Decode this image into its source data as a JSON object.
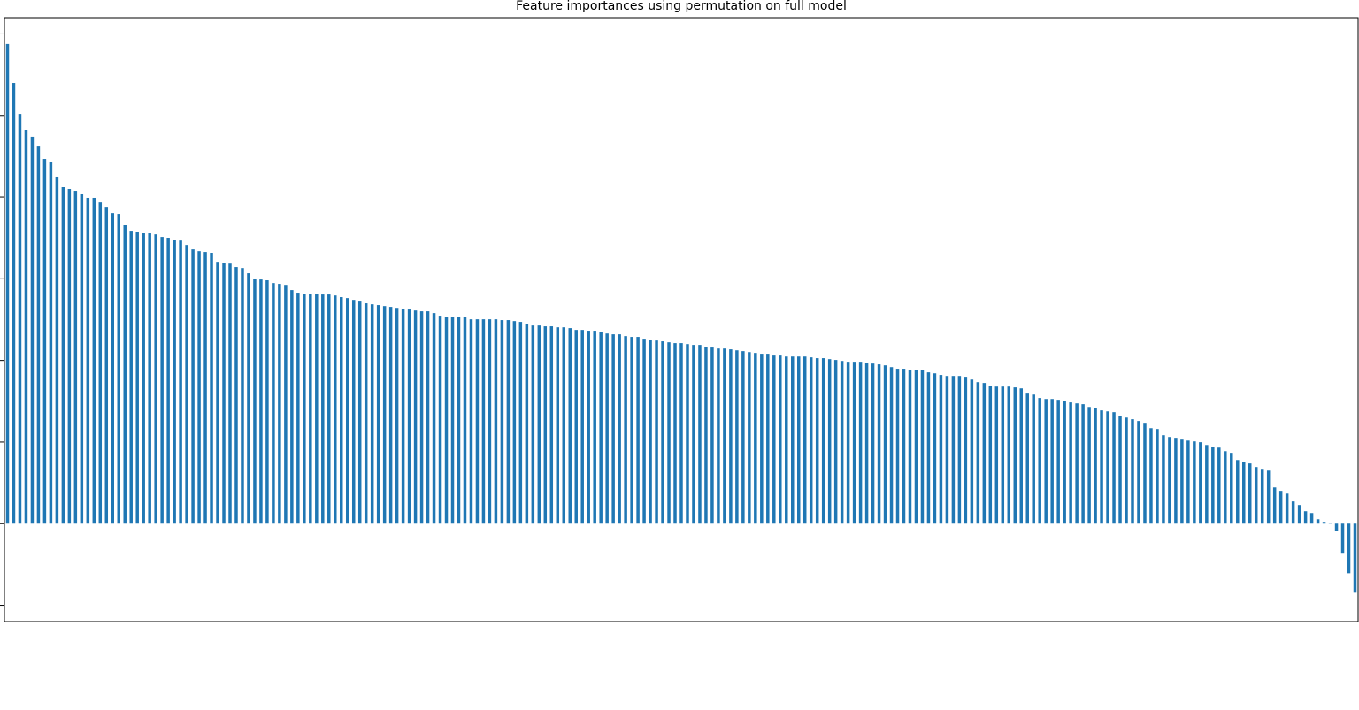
{
  "chart_data": {
    "type": "bar",
    "title": "Feature importances using permutation on full model",
    "color": "#1f77b4",
    "grid": false,
    "ylim": [
      -6.0,
      31.0
    ],
    "yticks": [
      -5,
      0,
      5,
      10,
      15,
      20,
      25,
      30
    ],
    "values": [
      29.38,
      26.99,
      25.09,
      24.12,
      23.69,
      23.14,
      22.33,
      22.17,
      21.25,
      20.65,
      20.49,
      20.38,
      20.22,
      19.95,
      19.95,
      19.67,
      19.4,
      19.02,
      18.97,
      18.27,
      17.94,
      17.89,
      17.83,
      17.78,
      17.72,
      17.56,
      17.51,
      17.4,
      17.34,
      17.07,
      16.8,
      16.69,
      16.64,
      16.59,
      16.04,
      15.99,
      15.93,
      15.72,
      15.66,
      15.34,
      15.01,
      14.96,
      14.91,
      14.74,
      14.69,
      14.63,
      14.31,
      14.15,
      14.09,
      14.09,
      14.09,
      14.04,
      14.04,
      13.98,
      13.88,
      13.82,
      13.71,
      13.66,
      13.5,
      13.44,
      13.39,
      13.33,
      13.28,
      13.22,
      13.17,
      13.12,
      13.06,
      13.01,
      13.01,
      12.9,
      12.74,
      12.68,
      12.68,
      12.68,
      12.68,
      12.52,
      12.52,
      12.52,
      12.52,
      12.52,
      12.47,
      12.47,
      12.41,
      12.36,
      12.25,
      12.14,
      12.14,
      12.09,
      12.09,
      12.03,
      12.03,
      11.98,
      11.87,
      11.87,
      11.82,
      11.82,
      11.76,
      11.65,
      11.6,
      11.6,
      11.49,
      11.44,
      11.44,
      11.33,
      11.27,
      11.22,
      11.17,
      11.11,
      11.06,
      11.06,
      11.0,
      10.95,
      10.95,
      10.84,
      10.79,
      10.73,
      10.73,
      10.68,
      10.62,
      10.57,
      10.51,
      10.46,
      10.41,
      10.41,
      10.3,
      10.3,
      10.24,
      10.24,
      10.24,
      10.24,
      10.19,
      10.14,
      10.14,
      10.08,
      10.03,
      9.97,
      9.92,
      9.92,
      9.92,
      9.86,
      9.81,
      9.76,
      9.7,
      9.59,
      9.49,
      9.49,
      9.43,
      9.43,
      9.43,
      9.27,
      9.21,
      9.11,
      9.05,
      9.05,
      9.05,
      9.0,
      8.83,
      8.67,
      8.62,
      8.46,
      8.4,
      8.4,
      8.4,
      8.35,
      8.29,
      7.97,
      7.91,
      7.7,
      7.64,
      7.64,
      7.59,
      7.53,
      7.43,
      7.37,
      7.32,
      7.15,
      7.1,
      6.94,
      6.88,
      6.83,
      6.61,
      6.5,
      6.4,
      6.29,
      6.18,
      5.85,
      5.8,
      5.42,
      5.31,
      5.26,
      5.15,
      5.09,
      5.04,
      4.99,
      4.82,
      4.72,
      4.66,
      4.44,
      4.34,
      3.9,
      3.79,
      3.69,
      3.47,
      3.36,
      3.25,
      2.22,
      2.01,
      1.84,
      1.36,
      1.14,
      0.76,
      0.65,
      0.27,
      0.11,
      0.02,
      -0.43,
      -1.84,
      -3.04,
      -4.23
    ]
  }
}
